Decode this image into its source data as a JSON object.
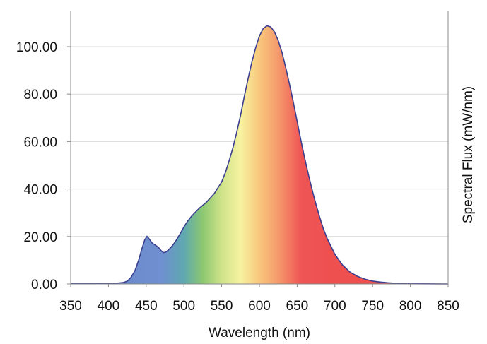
{
  "chart_data": {
    "type": "area",
    "title": "",
    "xlabel": "Wavelength (nm)",
    "ylabel": "Spectral Flux (mW/nm)",
    "ylabel_position": "right",
    "xlim": [
      350,
      850
    ],
    "ylim": [
      0,
      110
    ],
    "x_ticks": [
      350,
      400,
      450,
      500,
      550,
      600,
      650,
      700,
      750,
      800,
      850
    ],
    "x_tick_labels": [
      "350",
      "400",
      "450",
      "500",
      "550",
      "600",
      "650",
      "700",
      "750",
      "800",
      "850"
    ],
    "y_ticks": [
      0,
      20,
      40,
      60,
      80,
      100
    ],
    "y_tick_labels": [
      "0.00",
      "20.00",
      "40.00",
      "60.00",
      "80.00",
      "100.00"
    ],
    "grid": {
      "horizontal": true,
      "vertical": false
    },
    "legend": "none",
    "fill": "visible-spectrum gradient",
    "colors": {
      "line": "#3b3f8f",
      "grid": "#d9d9d9",
      "axis": "#888888",
      "spectrum_stops": [
        {
          "nm": 350,
          "color": "#6a86c9"
        },
        {
          "nm": 470,
          "color": "#6f8fd0"
        },
        {
          "nm": 500,
          "color": "#5fa8b0"
        },
        {
          "nm": 525,
          "color": "#8cc870"
        },
        {
          "nm": 550,
          "color": "#cfe38a"
        },
        {
          "nm": 575,
          "color": "#f7f2a0"
        },
        {
          "nm": 600,
          "color": "#f8c77c"
        },
        {
          "nm": 625,
          "color": "#f5996b"
        },
        {
          "nm": 655,
          "color": "#ef5555"
        },
        {
          "nm": 700,
          "color": "#ee4f4f"
        },
        {
          "nm": 850,
          "color": "#ee5050"
        }
      ]
    },
    "series": [
      {
        "x": [
          350,
          380,
          400,
          410,
          420,
          425,
          430,
          435,
          440,
          444,
          448,
          451,
          454,
          458,
          462,
          466,
          470,
          473,
          476,
          480,
          485,
          490,
          495,
          500,
          505,
          510,
          515,
          520,
          530,
          540,
          550,
          555,
          560,
          565,
          570,
          575,
          580,
          585,
          590,
          595,
          600,
          605,
          610,
          615,
          620,
          625,
          630,
          635,
          640,
          645,
          650,
          655,
          660,
          665,
          670,
          675,
          680,
          685,
          690,
          700,
          710,
          720,
          730,
          740,
          750,
          760,
          770,
          780,
          790,
          800,
          820,
          850
        ],
        "y": [
          0.3,
          0.3,
          0.2,
          0.3,
          0.6,
          1.2,
          2.8,
          5.5,
          10,
          14.5,
          18.5,
          20.1,
          19,
          17.2,
          16.4,
          15.5,
          14,
          13.2,
          13.4,
          14.5,
          16.2,
          18.5,
          21.2,
          24,
          26.5,
          28.5,
          30.2,
          31.8,
          34.5,
          38,
          43,
          47,
          52,
          57.5,
          64,
          71,
          79,
          86.5,
          93.5,
          99.5,
          104.5,
          107.6,
          108.8,
          108.3,
          106.2,
          102.5,
          97.5,
          91,
          84,
          76.5,
          68.5,
          60.5,
          53,
          46,
          39.5,
          33.5,
          28,
          23,
          19,
          12.5,
          8,
          5,
          3.2,
          2,
          1.2,
          0.8,
          0.5,
          0.3,
          0.2,
          0.1,
          0.05,
          0.0
        ]
      }
    ]
  }
}
